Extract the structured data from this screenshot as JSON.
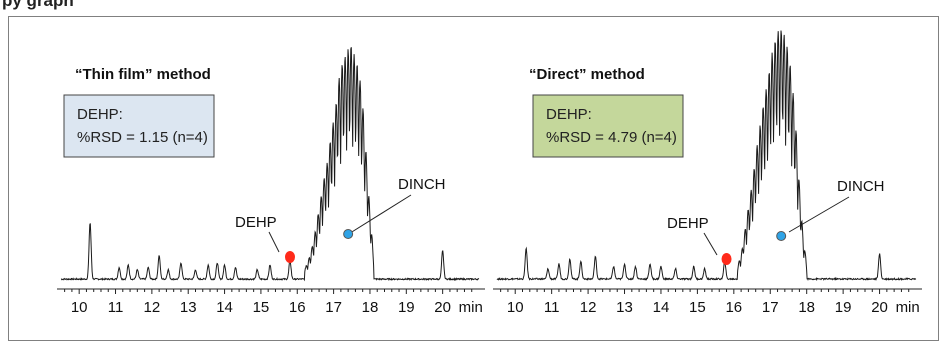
{
  "header": {
    "text": "py graph"
  },
  "chart_data": [
    {
      "type": "line",
      "title": "“Thin film” method",
      "xlabel": "min",
      "xlim": [
        9.5,
        21.0
      ],
      "ticks": [
        10,
        11,
        12,
        13,
        14,
        15,
        16,
        17,
        18,
        19,
        20
      ],
      "tick_unit": "min",
      "box": {
        "line1": "DEHP:",
        "line2": "%RSD = 1.15 (n=4)",
        "fill": "#dce6f1"
      },
      "markers": [
        {
          "label": "DEHP",
          "x": 15.8,
          "color": "#ff2a1a"
        },
        {
          "label": "DINCH",
          "x": 17.4,
          "color": "#2fa3e6"
        }
      ],
      "trace_color": "#1a1a1a",
      "peaks": [
        {
          "x": 10.3,
          "h": 0.24
        },
        {
          "x": 11.1,
          "h": 0.05
        },
        {
          "x": 11.35,
          "h": 0.06
        },
        {
          "x": 11.6,
          "h": 0.04
        },
        {
          "x": 11.9,
          "h": 0.05
        },
        {
          "x": 12.2,
          "h": 0.1
        },
        {
          "x": 12.45,
          "h": 0.04
        },
        {
          "x": 12.8,
          "h": 0.07
        },
        {
          "x": 13.2,
          "h": 0.04
        },
        {
          "x": 13.55,
          "h": 0.06
        },
        {
          "x": 13.8,
          "h": 0.07
        },
        {
          "x": 14.0,
          "h": 0.06
        },
        {
          "x": 14.3,
          "h": 0.05
        },
        {
          "x": 14.9,
          "h": 0.04
        },
        {
          "x": 15.25,
          "h": 0.06
        },
        {
          "x": 15.8,
          "h": 0.08
        },
        {
          "x": 20.0,
          "h": 0.12
        }
      ],
      "hump": {
        "start": 16.2,
        "end": 18.1,
        "heights": [
          0.04,
          0.08,
          0.14,
          0.22,
          0.32,
          0.42,
          0.5,
          0.62,
          0.72,
          0.85,
          0.93,
          0.96,
          1.0,
          0.95,
          0.9,
          0.78,
          0.55,
          0.3,
          0.1
        ]
      }
    },
    {
      "type": "line",
      "title": "“Direct” method",
      "xlabel": "min",
      "xlim": [
        9.5,
        21.0
      ],
      "ticks": [
        10,
        11,
        12,
        13,
        14,
        15,
        16,
        17,
        18,
        19,
        20
      ],
      "tick_unit": "min",
      "box": {
        "line1": "DEHP:",
        "line2": "%RSD = 4.79 (n=4)",
        "fill": "#c4d79b"
      },
      "markers": [
        {
          "label": "DEHP",
          "x": 15.8,
          "color": "#ff2a1a"
        },
        {
          "label": "DINCH",
          "x": 17.3,
          "color": "#2fa3e6"
        }
      ],
      "trace_color": "#1a1a1a",
      "peaks": [
        {
          "x": 10.3,
          "h": 0.12
        },
        {
          "x": 10.9,
          "h": 0.04
        },
        {
          "x": 11.2,
          "h": 0.06
        },
        {
          "x": 11.5,
          "h": 0.08
        },
        {
          "x": 11.8,
          "h": 0.07
        },
        {
          "x": 12.2,
          "h": 0.09
        },
        {
          "x": 12.7,
          "h": 0.05
        },
        {
          "x": 13.0,
          "h": 0.06
        },
        {
          "x": 13.3,
          "h": 0.05
        },
        {
          "x": 13.7,
          "h": 0.06
        },
        {
          "x": 14.0,
          "h": 0.05
        },
        {
          "x": 14.4,
          "h": 0.04
        },
        {
          "x": 14.9,
          "h": 0.05
        },
        {
          "x": 15.2,
          "h": 0.04
        },
        {
          "x": 15.75,
          "h": 0.07
        },
        {
          "x": 20.0,
          "h": 0.1
        }
      ],
      "hump": {
        "start": 16.1,
        "end": 18.0,
        "heights": [
          0.05,
          0.1,
          0.2,
          0.3,
          0.4,
          0.52,
          0.62,
          0.72,
          0.8,
          0.9,
          0.96,
          1.0,
          0.98,
          0.92,
          0.82,
          0.65,
          0.4,
          0.18,
          0.06
        ]
      }
    }
  ]
}
